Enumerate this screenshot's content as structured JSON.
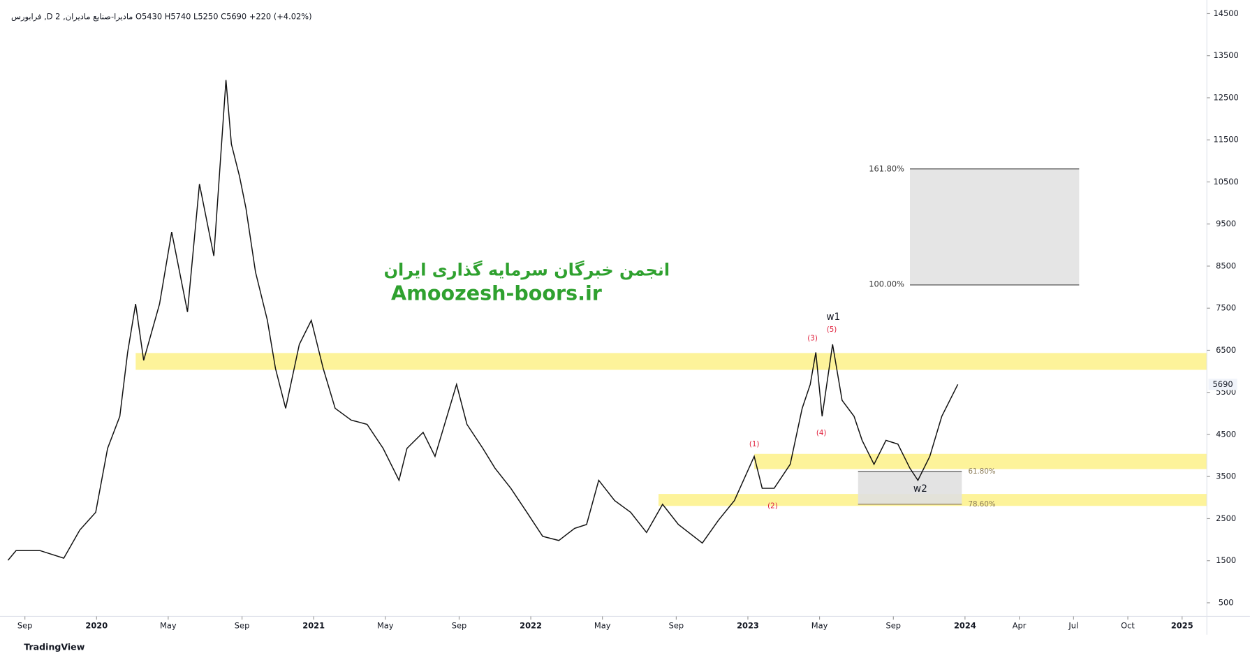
{
  "chart_data": {
    "type": "line",
    "header": "فرابورس ,D مادیرا-صنایع مادیران, 2   O5430  H5740  L5250  C5690  +220 (+4.02%)",
    "watermark_fa": "انجمن خبرگان سرمایه گذاری ایران",
    "watermark_en": "Amoozesh-boors.ir",
    "brand": "TradingView",
    "last_price": 5690,
    "xlim": [
      2019.592,
      2025.114
    ],
    "ylim": [
      177,
      14823
    ],
    "xticks": [
      {
        "value": 2019.67,
        "label": "Sep"
      },
      {
        "value": 2020,
        "label": "2020"
      },
      {
        "value": 2020.33,
        "label": "May"
      },
      {
        "value": 2020.67,
        "label": "Sep"
      },
      {
        "value": 2021,
        "label": "2021"
      },
      {
        "value": 2021.33,
        "label": "May"
      },
      {
        "value": 2021.67,
        "label": "Sep"
      },
      {
        "value": 2022,
        "label": "2022"
      },
      {
        "value": 2022.33,
        "label": "May"
      },
      {
        "value": 2022.67,
        "label": "Sep"
      },
      {
        "value": 2023,
        "label": "2023"
      },
      {
        "value": 2023.33,
        "label": "May"
      },
      {
        "value": 2023.67,
        "label": "Sep"
      },
      {
        "value": 2024,
        "label": "2024"
      },
      {
        "value": 2024.25,
        "label": "Apr"
      },
      {
        "value": 2024.5,
        "label": "Jul"
      },
      {
        "value": 2024.75,
        "label": "Oct"
      },
      {
        "value": 2025,
        "label": "2025"
      }
    ],
    "yticks": [
      500,
      1500,
      2500,
      3500,
      4500,
      5500,
      6500,
      7500,
      8500,
      9500,
      10500,
      11500,
      12500,
      13500,
      14500
    ],
    "grid": false,
    "series": [
      {
        "name": "مادیرا",
        "color": "#111111",
        "x": [
          2019.592,
          2019.629,
          2019.739,
          2019.849,
          2019.923,
          2019.996,
          2020.051,
          2020.107,
          2020.143,
          2020.18,
          2020.217,
          2020.29,
          2020.346,
          2020.419,
          2020.474,
          2020.54,
          2020.596,
          2020.621,
          2020.658,
          2020.688,
          2020.732,
          2020.787,
          2020.824,
          2020.871,
          2020.934,
          2020.989,
          2021.044,
          2021.099,
          2021.173,
          2021.246,
          2021.32,
          2021.393,
          2021.43,
          2021.504,
          2021.559,
          2021.614,
          2021.658,
          2021.706,
          2021.779,
          2021.835,
          2021.908,
          2021.982,
          2022.055,
          2022.129,
          2022.202,
          2022.257,
          2022.313,
          2022.386,
          2022.46,
          2022.533,
          2022.607,
          2022.68,
          2022.79,
          2022.864,
          2022.938,
          2023.029,
          2023.066,
          2023.121,
          2023.195,
          2023.25,
          2023.287,
          2023.313,
          2023.342,
          2023.39,
          2023.434,
          2023.489,
          2023.526,
          2023.581,
          2023.636,
          2023.691,
          2023.746,
          2023.783,
          2023.838,
          2023.893,
          2023.967
        ],
        "values": [
          1510,
          1740,
          1740,
          1560,
          2230,
          2650,
          4170,
          4930,
          6450,
          7600,
          6260,
          7600,
          9310,
          7410,
          10450,
          8740,
          12920,
          11400,
          10640,
          9880,
          8360,
          7210,
          6070,
          5120,
          6640,
          7210,
          6070,
          5120,
          4840,
          4740,
          4170,
          3410,
          4170,
          4550,
          3980,
          4930,
          5690,
          4740,
          4170,
          3700,
          3220,
          2650,
          2080,
          1980,
          2270,
          2360,
          3410,
          2930,
          2650,
          2170,
          2840,
          2360,
          1920,
          2460,
          2930,
          3980,
          3220,
          3220,
          3790,
          5120,
          5690,
          6450,
          4930,
          6640,
          5310,
          4930,
          4360,
          3790,
          4360,
          4270,
          3700,
          3410,
          3980,
          4930,
          5690
        ]
      }
    ],
    "fib_levels": [
      "161.80%",
      "100.00%",
      "61.80%",
      "78.60%"
    ],
    "wave_labels": [
      "w1",
      "w2",
      "(1)",
      "(2)",
      "(3)",
      "(4)",
      "(5)"
    ]
  }
}
